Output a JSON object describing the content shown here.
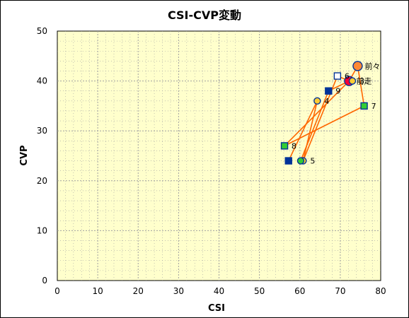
{
  "chart_data": {
    "type": "scatter",
    "title": "CSI-CVP変動",
    "xlabel": "CSI",
    "ylabel": "CVP",
    "xlim": [
      0,
      80
    ],
    "ylim": [
      0,
      50
    ],
    "xticks": [
      "0",
      "10",
      "20",
      "30",
      "40",
      "50",
      "60",
      "70",
      "80"
    ],
    "yticks": [
      "0",
      "10",
      "20",
      "30",
      "40",
      "50"
    ],
    "grid": true,
    "legend": "none",
    "colors": {
      "plot_bg": "#ffffcc",
      "grid": "#a0a0a0",
      "line": "#ff6600",
      "current": "#ff0033",
      "previous": "#ff8833",
      "circle_fill": "#ffcc33",
      "square_blue": "#003399",
      "square_green": "#33cc33",
      "square_white": "#ffffff",
      "marker_edge": "#003399"
    },
    "points": [
      {
        "label": "前々",
        "x": 74.3,
        "y": 43.0,
        "marker": "circle",
        "fill": "#ff8833",
        "size": "large"
      },
      {
        "label": "前走",
        "x": 72.2,
        "y": 40.0,
        "marker": "circle",
        "fill": "#ff0033",
        "size": "large"
      },
      {
        "label": "3",
        "x": 73.0,
        "y": 40.0,
        "marker": "circle",
        "fill": "#ffcc33",
        "size": "small"
      },
      {
        "label": "4",
        "x": 64.3,
        "y": 36.0,
        "marker": "circle",
        "fill": "#ffcc33",
        "size": "small"
      },
      {
        "label": "5",
        "x": 60.8,
        "y": 24.0,
        "marker": "circle",
        "fill": "#ffcc33",
        "size": "small"
      },
      {
        "label": "6",
        "x": 69.3,
        "y": 41.0,
        "marker": "square",
        "fill": "#ffffff",
        "size": "small"
      },
      {
        "label": "7",
        "x": 75.9,
        "y": 35.0,
        "marker": "square",
        "fill": "#33cc33",
        "size": "small"
      },
      {
        "label": "8",
        "x": 56.2,
        "y": 27.0,
        "marker": "square",
        "fill": "#33cc33",
        "size": "small"
      },
      {
        "label": "9",
        "x": 67.1,
        "y": 38.0,
        "marker": "square",
        "fill": "#003399",
        "size": "small"
      },
      {
        "label": "",
        "x": 57.2,
        "y": 24.0,
        "marker": "square",
        "fill": "#003399",
        "size": "small"
      },
      {
        "label": "",
        "x": 60.2,
        "y": 24.0,
        "marker": "circle",
        "fill": "#33cc33",
        "size": "small"
      }
    ],
    "lines": [
      [
        [
          74.3,
          43.0
        ],
        [
          72.2,
          40.0
        ]
      ],
      [
        [
          74.3,
          43.0
        ],
        [
          75.9,
          35.0
        ]
      ],
      [
        [
          72.2,
          40.0
        ],
        [
          69.3,
          41.0
        ]
      ],
      [
        [
          69.3,
          41.0
        ],
        [
          60.8,
          24.0
        ]
      ],
      [
        [
          67.1,
          38.0
        ],
        [
          60.2,
          24.0
        ]
      ],
      [
        [
          64.3,
          36.0
        ],
        [
          57.2,
          24.0
        ]
      ],
      [
        [
          72.2,
          40.0
        ],
        [
          56.2,
          27.0
        ]
      ],
      [
        [
          56.2,
          27.0
        ],
        [
          75.9,
          35.0
        ]
      ],
      [
        [
          64.3,
          36.0
        ],
        [
          60.8,
          24.0
        ]
      ],
      [
        [
          67.1,
          38.0
        ],
        [
          72.2,
          40.0
        ]
      ]
    ]
  }
}
